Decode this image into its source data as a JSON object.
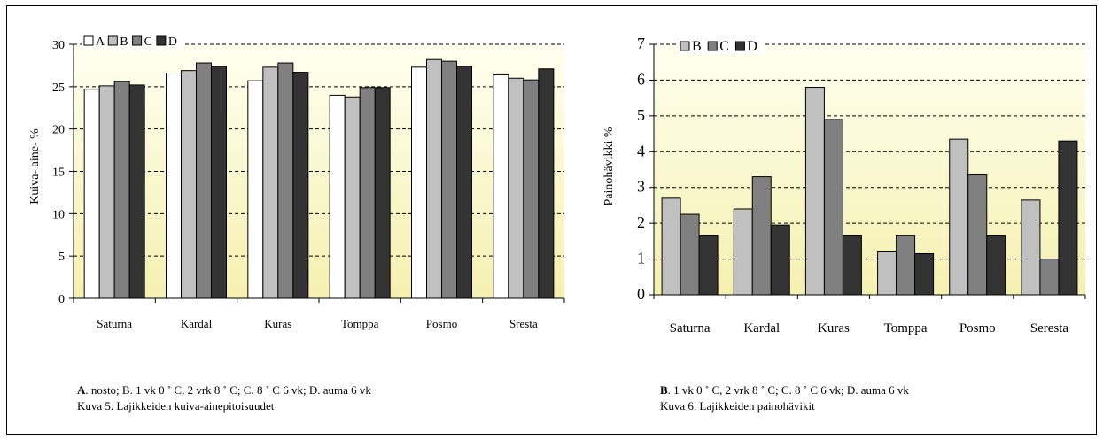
{
  "charts": {
    "left": {
      "ylabel": "Kuiva- aine- %",
      "caption_line1": ". nosto; B. 1 vk 0 ˚ C, 2 vrk 8 ˚ C; C. 8 ˚ C 6 vk; D. auma 6 vk",
      "caption_bold_letter": "A",
      "caption_line2": "Kuva 5. Lajikkeiden kuiva-ainepitoisuudet"
    },
    "right": {
      "ylabel": "Painohävikki %",
      "caption_line1": ". 1 vk 0 ˚ C, 2 vrk 8 ˚ C; C. 8 ˚ C 6 vk; D. auma 6 vk",
      "caption_bold_letter": "B",
      "caption_line2": "Kuva 6. Lajikkeiden painohävikit"
    }
  },
  "colors": {
    "plot_bg_top": "#fffff0",
    "plot_bg_bottom": "#f5f0b0",
    "A": "#ffffff",
    "B": "#c0c0c0",
    "C": "#808080",
    "D": "#333333"
  },
  "chart_data": [
    {
      "type": "bar",
      "categories": [
        "Saturna",
        "Kardal",
        "Kuras",
        "Tomppa",
        "Posmo",
        "Sresta"
      ],
      "series": [
        {
          "name": "A",
          "values": [
            24.7,
            26.6,
            25.7,
            24.0,
            27.3,
            26.4
          ]
        },
        {
          "name": "B",
          "values": [
            25.1,
            26.9,
            27.3,
            23.7,
            28.2,
            26.0
          ]
        },
        {
          "name": "C",
          "values": [
            25.6,
            27.8,
            27.8,
            24.9,
            28.0,
            25.8
          ]
        },
        {
          "name": "D",
          "values": [
            25.2,
            27.4,
            26.7,
            24.9,
            27.4,
            27.1
          ]
        }
      ],
      "ylabel": "Kuiva- aine- %",
      "ylim": [
        0,
        30
      ],
      "yticks": [
        0,
        5,
        10,
        15,
        20,
        25,
        30
      ],
      "grid": "dashed horizontal",
      "legend": "top-left"
    },
    {
      "type": "bar",
      "categories": [
        "Saturna",
        "Kardal",
        "Kuras",
        "Tomppa",
        "Posmo",
        "Seresta"
      ],
      "series": [
        {
          "name": "B",
          "values": [
            2.7,
            2.4,
            5.8,
            1.2,
            4.35,
            2.65
          ]
        },
        {
          "name": "C",
          "values": [
            2.25,
            3.3,
            4.9,
            1.65,
            3.35,
            1.0
          ]
        },
        {
          "name": "D",
          "values": [
            1.65,
            1.95,
            1.65,
            1.15,
            1.65,
            4.3
          ]
        }
      ],
      "ylabel": "Painohävikki %",
      "ylim": [
        0,
        7
      ],
      "yticks": [
        0,
        1,
        2,
        3,
        4,
        5,
        6,
        7
      ],
      "grid": "dashed horizontal",
      "legend": "top-left"
    }
  ]
}
